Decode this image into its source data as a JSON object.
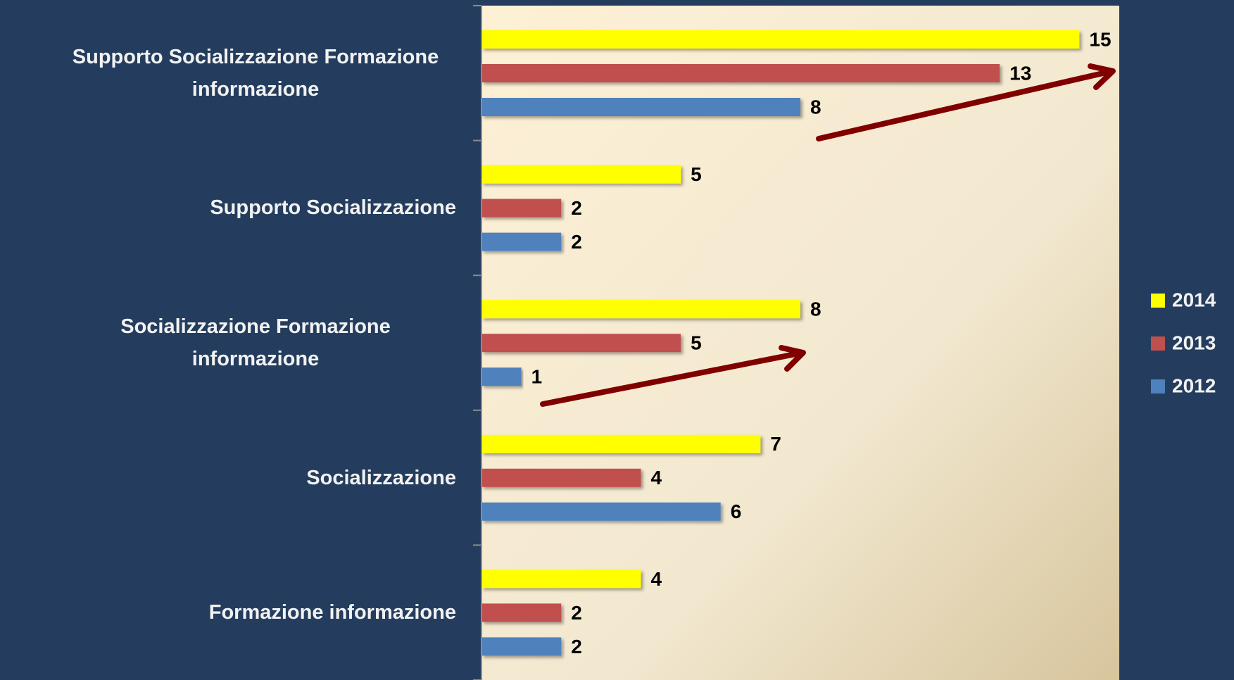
{
  "chart_data": {
    "type": "bar",
    "orientation": "horizontal",
    "categories": [
      "Supporto Socializzazione Formazione informazione",
      "Supporto Socializzazione",
      "Socializzazione Formazione informazione",
      "Socializzazione",
      "Formazione informazione"
    ],
    "series": [
      {
        "name": "2014",
        "color": "#ffff00",
        "values": [
          15,
          5,
          8,
          7,
          4
        ]
      },
      {
        "name": "2013",
        "color": "#c0504d",
        "values": [
          13,
          2,
          5,
          4,
          2
        ]
      },
      {
        "name": "2012",
        "color": "#4f81bd",
        "values": [
          8,
          2,
          1,
          6,
          2
        ]
      }
    ],
    "xlim": [
      0,
      16
    ],
    "legend": "right"
  }
}
